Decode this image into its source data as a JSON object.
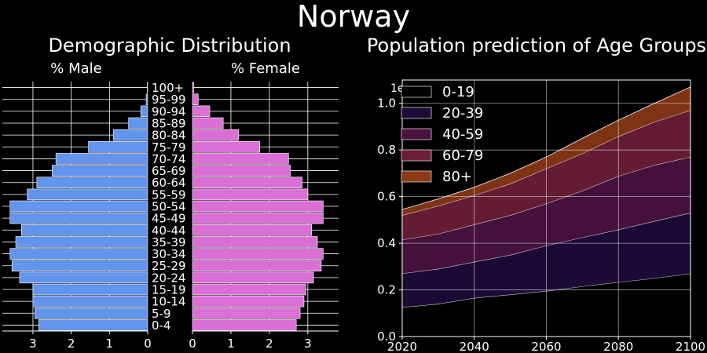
{
  "suptitle": "Norway",
  "colors": {
    "background": "#000000",
    "male": "#6495ED",
    "female": "#DA70D6",
    "grid": "#ffffff",
    "bar_edge": "#ffffff"
  },
  "chart_data": [
    {
      "type": "bar",
      "orientation": "horizontal",
      "title": "Demographic Distribution",
      "male_label": "% Male",
      "female_label": "% Female",
      "categories": [
        "0-4",
        "5-9",
        "10-14",
        "15-19",
        "20-24",
        "25-29",
        "30-34",
        "35-39",
        "40-44",
        "45-49",
        "50-54",
        "55-59",
        "60-64",
        "65-69",
        "70-74",
        "75-79",
        "80-84",
        "85-89",
        "90-94",
        "95-99",
        "100+"
      ],
      "series": [
        {
          "name": "% Male",
          "values": [
            2.85,
            2.95,
            3.0,
            3.0,
            3.35,
            3.55,
            3.6,
            3.45,
            3.3,
            3.6,
            3.6,
            3.15,
            2.9,
            2.5,
            2.4,
            1.55,
            0.9,
            0.5,
            0.18,
            0.04,
            0.01
          ]
        },
        {
          "name": "% Female",
          "values": [
            2.7,
            2.8,
            2.9,
            2.95,
            3.15,
            3.35,
            3.4,
            3.25,
            3.1,
            3.4,
            3.4,
            3.0,
            2.85,
            2.55,
            2.5,
            1.75,
            1.2,
            0.8,
            0.45,
            0.15,
            0.03
          ]
        }
      ],
      "xlim_male": [
        3.8,
        0
      ],
      "xlim_female": [
        0,
        3.8
      ],
      "xticks": [
        3,
        2,
        1,
        0
      ],
      "grid": true
    },
    {
      "type": "area",
      "stacked": true,
      "title": "Population prediction of Age Groups",
      "x": [
        2020,
        2030,
        2040,
        2050,
        2060,
        2070,
        2080,
        2090,
        2100
      ],
      "series": [
        {
          "name": "0-19",
          "color": "#000000",
          "values": [
            1250000,
            1400000,
            1650000,
            1800000,
            1950000,
            2150000,
            2330000,
            2500000,
            2700000
          ]
        },
        {
          "name": "20-39",
          "color": "#1E0A3C",
          "values": [
            1450000,
            1500000,
            1550000,
            1700000,
            1950000,
            2100000,
            2250000,
            2450000,
            2600000
          ]
        },
        {
          "name": "40-59",
          "color": "#4A1342",
          "values": [
            1450000,
            1500000,
            1600000,
            1700000,
            1800000,
            2000000,
            2300000,
            2400000,
            2400000
          ]
        },
        {
          "name": "60-79",
          "color": "#6E1F38",
          "values": [
            1050000,
            1200000,
            1250000,
            1350000,
            1500000,
            1600000,
            1700000,
            1850000,
            2000000
          ]
        },
        {
          "name": "80+",
          "color": "#8C3A16",
          "values": [
            250000,
            300000,
            350000,
            450000,
            500000,
            650000,
            700000,
            800000,
            1000000
          ]
        }
      ],
      "xlim": [
        2020,
        2100
      ],
      "ylim": [
        0,
        11000000
      ],
      "xticks": [
        2020,
        2040,
        2060,
        2080,
        2100
      ],
      "yticks": [
        0,
        2000000,
        4000000,
        6000000,
        8000000,
        10000000
      ],
      "ytick_labels": [
        "0.0",
        "0.2",
        "0.4",
        "0.6",
        "0.8",
        "1.0"
      ],
      "y_offset_label": "1e7",
      "legend": "top-left",
      "grid": true
    }
  ]
}
